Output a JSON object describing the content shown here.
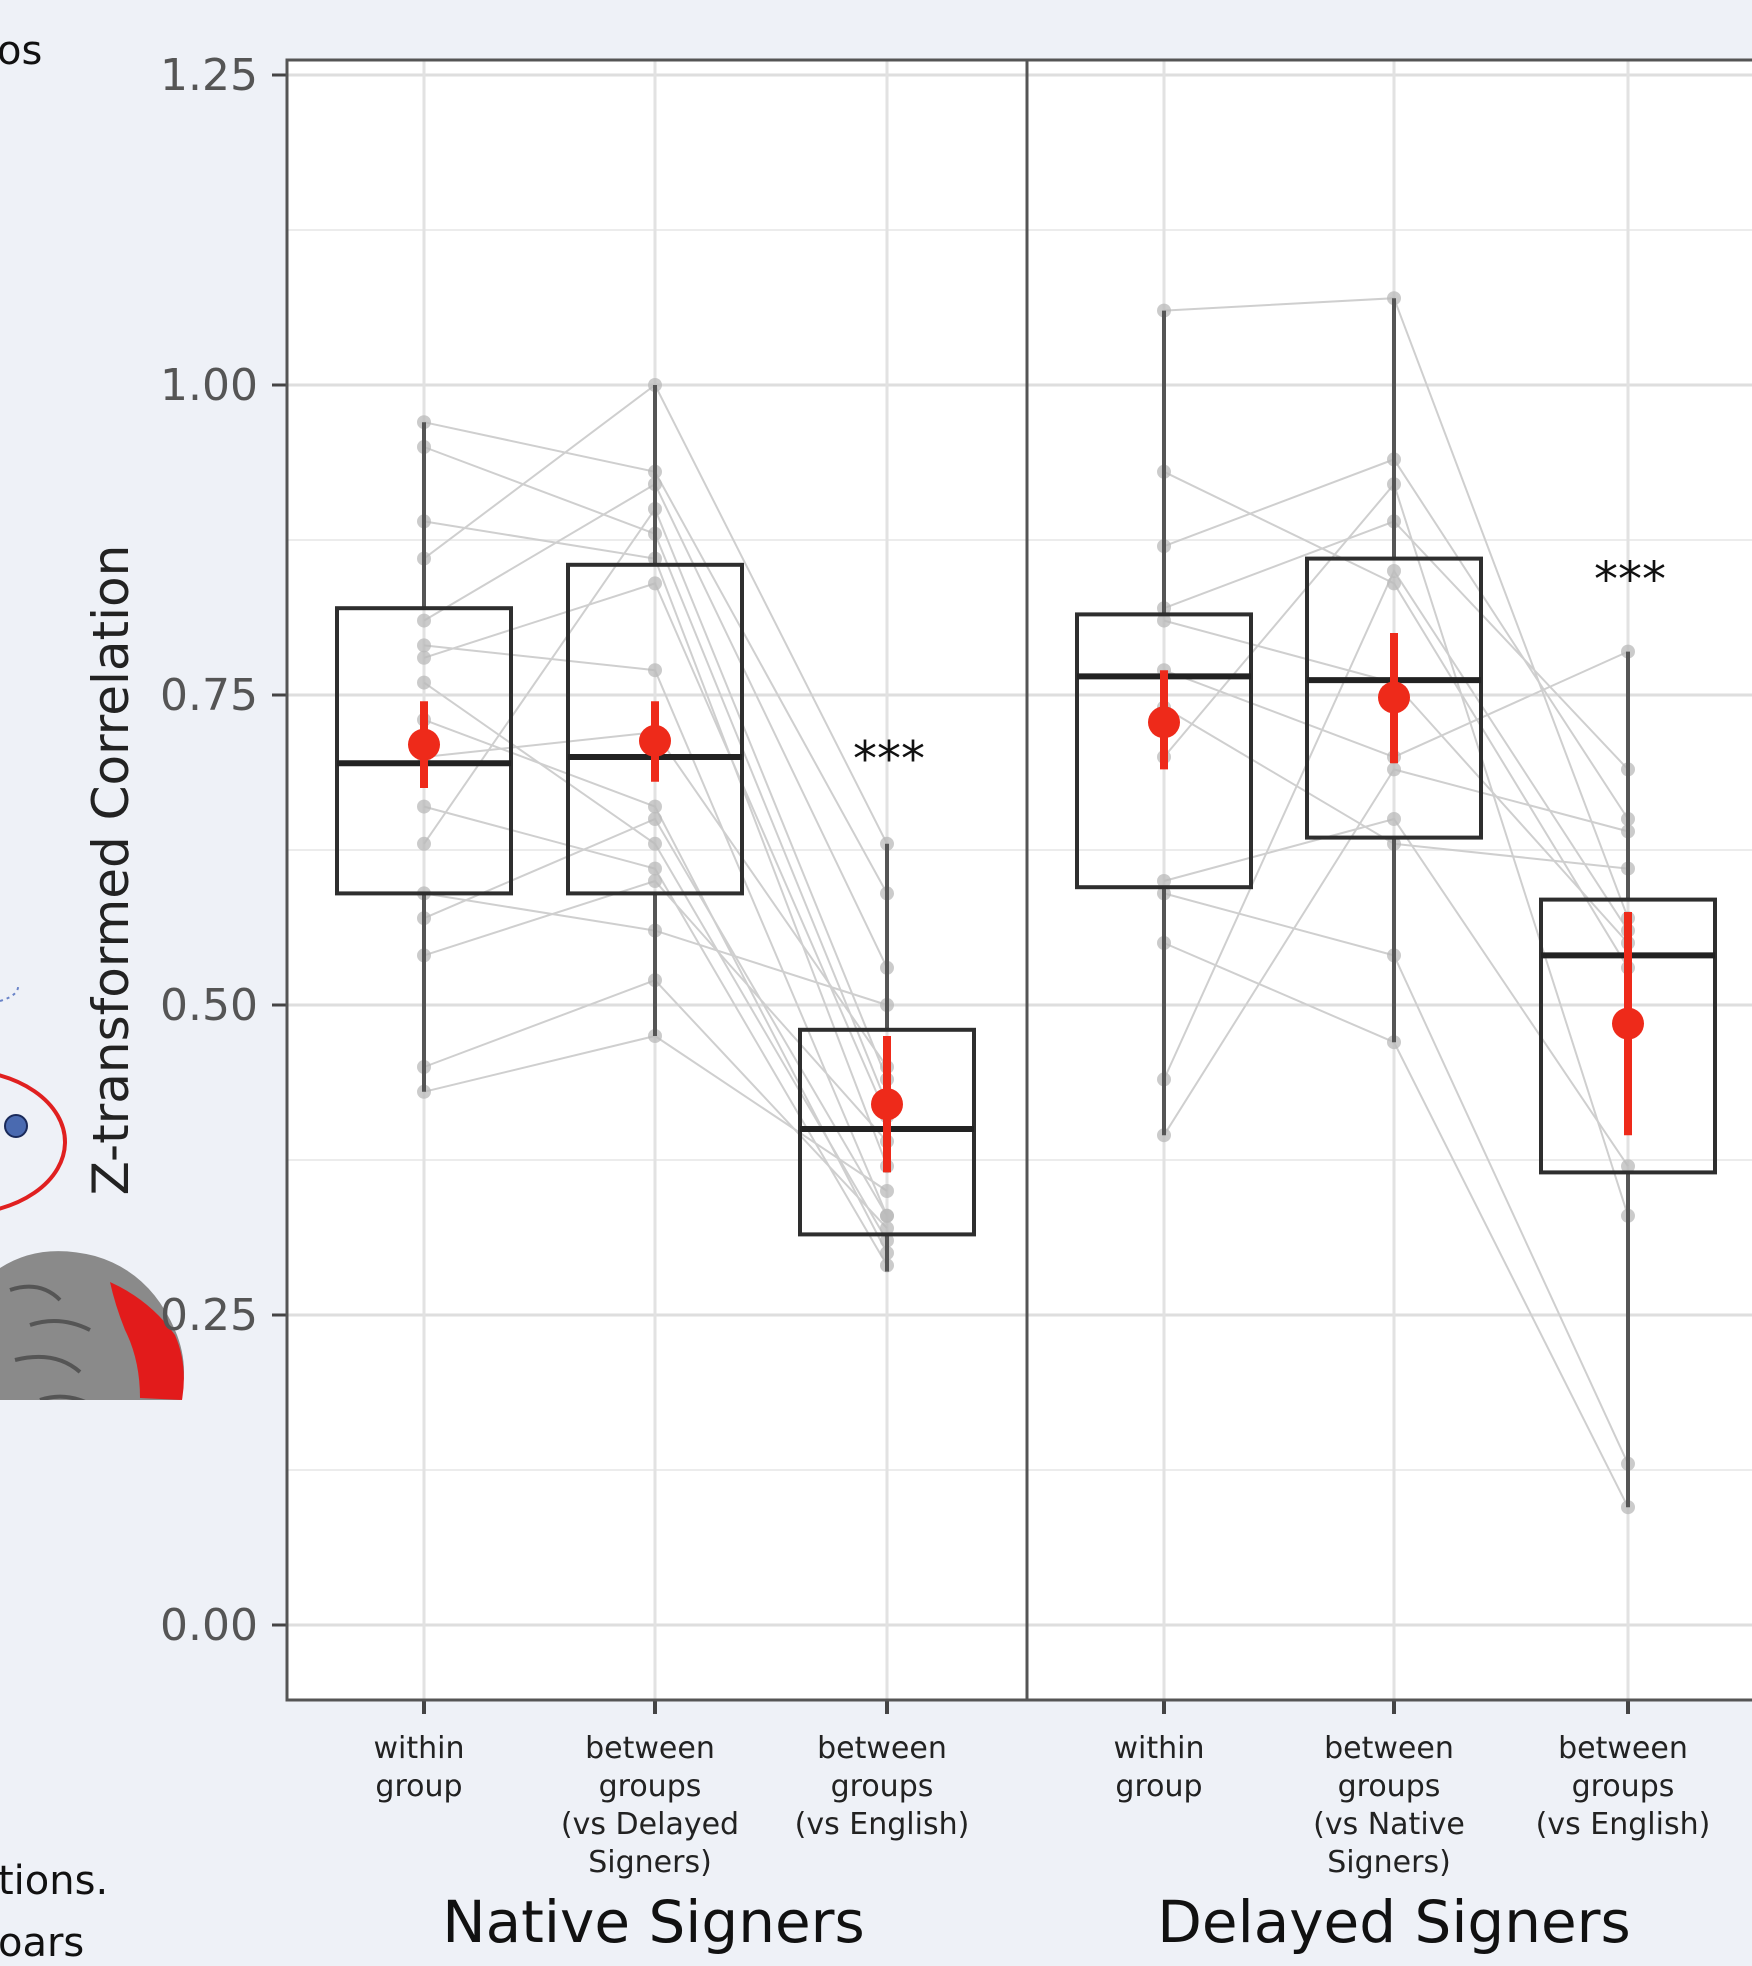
{
  "chart_data": {
    "type": "box",
    "ylabel": "Z-transformed Correlation",
    "ylim": [
      -0.05,
      1.27
    ],
    "yticks": [
      "0.00",
      "0.25",
      "0.50",
      "0.75",
      "1.00",
      "1.25"
    ],
    "ytick_values": [
      0,
      0.25,
      0.5,
      0.75,
      1.0,
      1.25
    ],
    "grid": true,
    "colors": {
      "mean": "#ee2a1a",
      "box": "#2e2e2e",
      "points": "#b9b9b9",
      "lines": "#cfcfcf"
    },
    "panels": [
      {
        "name": "Native Signers",
        "categories": [
          "within group",
          "between groups (vs Delayed Signers)",
          "between groups (vs English)"
        ],
        "category_lines": [
          [
            "within",
            "group"
          ],
          [
            "between",
            "groups",
            "(vs Delayed",
            "Signers)"
          ],
          [
            "between",
            "groups",
            "(vs English)"
          ]
        ],
        "boxes": [
          {
            "whisker_low": 0.43,
            "q1": 0.59,
            "median": 0.695,
            "q3": 0.82,
            "whisker_high": 0.97,
            "mean": 0.71,
            "ci_low": 0.675,
            "ci_high": 0.745
          },
          {
            "whisker_low": 0.475,
            "q1": 0.59,
            "median": 0.7,
            "q3": 0.855,
            "whisker_high": 1.0,
            "mean": 0.713,
            "ci_low": 0.68,
            "ci_high": 0.745
          },
          {
            "whisker_low": 0.285,
            "q1": 0.315,
            "median": 0.4,
            "q3": 0.48,
            "whisker_high": 0.63,
            "mean": 0.42,
            "ci_low": 0.365,
            "ci_high": 0.475
          }
        ],
        "subjects": [
          [
            0.97,
            0.93,
            0.59
          ],
          [
            0.95,
            0.88,
            0.42
          ],
          [
            0.89,
            0.86,
            0.37
          ],
          [
            0.86,
            1.0,
            0.63
          ],
          [
            0.81,
            0.92,
            0.53
          ],
          [
            0.79,
            0.77,
            0.33
          ],
          [
            0.78,
            0.84,
            0.41
          ],
          [
            0.76,
            0.63,
            0.31
          ],
          [
            0.73,
            0.66,
            0.3
          ],
          [
            0.7,
            0.72,
            0.45
          ],
          [
            0.66,
            0.61,
            0.29
          ],
          [
            0.63,
            0.9,
            0.44
          ],
          [
            0.59,
            0.56,
            0.5
          ],
          [
            0.57,
            0.65,
            0.33
          ],
          [
            0.54,
            0.6,
            0.39
          ],
          [
            0.45,
            0.52,
            0.32
          ],
          [
            0.43,
            0.475,
            0.35
          ]
        ],
        "annotation": {
          "category": 2,
          "text": "***",
          "y": 0.685
        }
      },
      {
        "name": "Delayed Signers",
        "categories": [
          "within group",
          "between groups (vs Native Signers)",
          "between groups (vs English)"
        ],
        "category_lines": [
          [
            "within",
            "group"
          ],
          [
            "between",
            "groups",
            "(vs Native",
            "Signers)"
          ],
          [
            "between",
            "groups",
            "(vs English)"
          ]
        ],
        "boxes": [
          {
            "whisker_low": 0.395,
            "q1": 0.595,
            "median": 0.765,
            "q3": 0.815,
            "whisker_high": 1.06,
            "mean": 0.728,
            "ci_low": 0.69,
            "ci_high": 0.77
          },
          {
            "whisker_low": 0.47,
            "q1": 0.635,
            "median": 0.762,
            "q3": 0.86,
            "whisker_high": 1.07,
            "mean": 0.748,
            "ci_low": 0.695,
            "ci_high": 0.8
          },
          {
            "whisker_low": 0.095,
            "q1": 0.365,
            "median": 0.54,
            "q3": 0.585,
            "whisker_high": 0.785,
            "mean": 0.485,
            "ci_low": 0.395,
            "ci_high": 0.575
          }
        ],
        "subjects": [
          [
            1.06,
            1.07,
            0.57
          ],
          [
            0.93,
            0.84,
            0.53
          ],
          [
            0.87,
            0.94,
            0.65
          ],
          [
            0.82,
            0.89,
            0.69
          ],
          [
            0.81,
            0.76,
            0.55
          ],
          [
            0.77,
            0.7,
            0.785
          ],
          [
            0.74,
            0.63,
            0.61
          ],
          [
            0.7,
            0.92,
            0.33
          ],
          [
            0.6,
            0.65,
            0.37
          ],
          [
            0.59,
            0.54,
            0.13
          ],
          [
            0.55,
            0.47,
            0.095
          ],
          [
            0.44,
            0.85,
            0.56
          ],
          [
            0.395,
            0.69,
            0.64
          ]
        ],
        "annotation": {
          "category": 2,
          "text": "***",
          "y": 0.83
        }
      }
    ]
  },
  "background_text": [
    "os",
    "tions.",
    "oars"
  ]
}
